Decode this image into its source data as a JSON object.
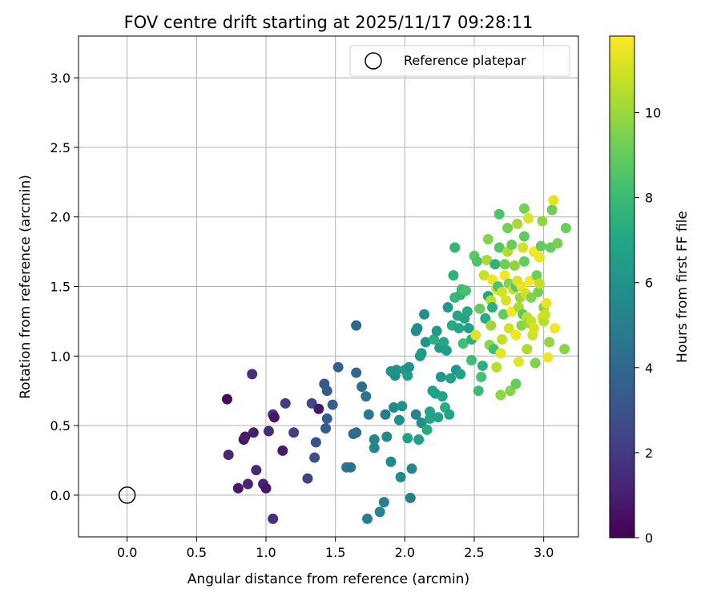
{
  "chart_data": {
    "type": "scatter",
    "title": "FOV centre drift starting at 2025/11/17 09:28:11",
    "xlabel": "Angular distance from reference (arcmin)",
    "ylabel": "Rotation from reference (arcmin)",
    "xlim": [
      -0.35,
      3.25
    ],
    "ylim": [
      -0.3,
      3.3
    ],
    "xticks": [
      "0.0",
      "0.5",
      "1.0",
      "1.5",
      "2.0",
      "2.5",
      "3.0"
    ],
    "yticks": [
      "0.0",
      "0.5",
      "1.0",
      "1.5",
      "2.0",
      "2.5",
      "3.0"
    ],
    "grid": true,
    "legend": {
      "location": "upper right",
      "entries": [
        "Reference platepar"
      ]
    },
    "reference_point": {
      "x": 0.0,
      "y": 0.0,
      "marker": "open-circle"
    },
    "colorbar": {
      "label": "Hours from first FF file",
      "range": [
        0,
        11.8
      ],
      "ticks": [
        "0",
        "2",
        "4",
        "6",
        "8",
        "10"
      ],
      "colormap": "viridis"
    },
    "series": [
      {
        "values": [
          [
            0.72,
            0.69,
            0.3
          ],
          [
            0.73,
            0.29,
            1.2
          ],
          [
            0.8,
            0.05,
            0.8
          ],
          [
            0.84,
            0.4,
            0.5
          ],
          [
            0.85,
            0.42,
            0.9
          ],
          [
            0.87,
            0.08,
            1.3
          ],
          [
            0.9,
            0.87,
            1.6
          ],
          [
            0.91,
            0.45,
            1.0
          ],
          [
            0.93,
            0.18,
            1.4
          ],
          [
            0.98,
            0.08,
            1.1
          ],
          [
            1.0,
            0.05,
            0.7
          ],
          [
            1.02,
            0.46,
            1.5
          ],
          [
            1.05,
            0.58,
            1.8
          ],
          [
            1.06,
            0.56,
            0.6
          ],
          [
            1.05,
            -0.17,
            1.7
          ],
          [
            1.12,
            0.32,
            0.9
          ],
          [
            1.14,
            0.66,
            2.1
          ],
          [
            1.2,
            0.45,
            2.2
          ],
          [
            1.3,
            0.12,
            2.3
          ],
          [
            1.33,
            0.66,
            2.5
          ],
          [
            1.35,
            0.27,
            2.8
          ],
          [
            1.36,
            0.38,
            3.0
          ],
          [
            1.38,
            0.62,
            0.8
          ],
          [
            1.42,
            0.8,
            3.2
          ],
          [
            1.44,
            0.75,
            3.4
          ],
          [
            1.43,
            0.48,
            3.3
          ],
          [
            1.44,
            0.55,
            3.5
          ],
          [
            1.48,
            0.65,
            3.6
          ],
          [
            1.52,
            0.92,
            3.7
          ],
          [
            1.58,
            0.2,
            4.6
          ],
          [
            1.61,
            0.2,
            4.4
          ],
          [
            1.63,
            0.44,
            4.0
          ],
          [
            1.65,
            1.22,
            3.9
          ],
          [
            1.65,
            0.88,
            3.8
          ],
          [
            1.65,
            0.45,
            4.1
          ],
          [
            1.69,
            0.78,
            4.2
          ],
          [
            1.72,
            0.71,
            4.5
          ],
          [
            1.74,
            0.58,
            4.7
          ],
          [
            1.73,
            -0.17,
            5.0
          ],
          [
            1.78,
            0.4,
            5.3
          ],
          [
            1.78,
            0.34,
            5.2
          ],
          [
            1.82,
            -0.12,
            5.4
          ],
          [
            1.85,
            -0.05,
            5.1
          ],
          [
            1.86,
            0.58,
            4.8
          ],
          [
            1.87,
            0.42,
            5.4
          ],
          [
            1.9,
            0.24,
            5.5
          ],
          [
            1.9,
            0.89,
            6.2
          ],
          [
            1.92,
            0.63,
            5.6
          ],
          [
            1.93,
            0.86,
            5.7
          ],
          [
            1.94,
            0.9,
            6.0
          ],
          [
            1.96,
            0.54,
            5.8
          ],
          [
            1.97,
            0.13,
            5.6
          ],
          [
            1.98,
            0.64,
            5.9
          ],
          [
            2.0,
            0.9,
            6.4
          ],
          [
            2.02,
            0.86,
            6.5
          ],
          [
            2.02,
            0.41,
            6.7
          ],
          [
            2.03,
            0.92,
            5.9
          ],
          [
            2.04,
            -0.02,
            5.0
          ],
          [
            2.05,
            0.19,
            5.5
          ],
          [
            2.08,
            0.58,
            5.3
          ],
          [
            2.08,
            1.18,
            5.8
          ],
          [
            2.09,
            1.2,
            5.6
          ],
          [
            2.1,
            0.4,
            6.6
          ],
          [
            2.11,
            1.0,
            6.2
          ],
          [
            2.12,
            1.02,
            6.3
          ],
          [
            2.12,
            0.52,
            5.7
          ],
          [
            2.14,
            1.3,
            5.8
          ],
          [
            2.15,
            1.1,
            6.1
          ],
          [
            2.16,
            0.47,
            7.2
          ],
          [
            2.18,
            0.6,
            7.0
          ],
          [
            2.18,
            0.55,
            6.9
          ],
          [
            2.2,
            0.75,
            6.6
          ],
          [
            2.21,
            1.12,
            7.4
          ],
          [
            2.22,
            0.73,
            6.7
          ],
          [
            2.23,
            1.18,
            6.4
          ],
          [
            2.24,
            0.56,
            6.8
          ],
          [
            2.25,
            1.06,
            6.3
          ],
          [
            2.26,
            0.85,
            6.2
          ],
          [
            2.27,
            0.71,
            6.9
          ],
          [
            2.28,
            1.1,
            7.1
          ],
          [
            2.29,
            0.63,
            7.3
          ],
          [
            2.3,
            1.04,
            6.5
          ],
          [
            2.31,
            1.35,
            6.4
          ],
          [
            2.32,
            0.58,
            6.8
          ],
          [
            2.33,
            0.84,
            6.6
          ],
          [
            2.34,
            1.22,
            7.3
          ],
          [
            2.35,
            1.58,
            7.5
          ],
          [
            2.36,
            1.42,
            7.8
          ],
          [
            2.36,
            1.78,
            7.7
          ],
          [
            2.37,
            0.9,
            6.1
          ],
          [
            2.38,
            1.29,
            7.0
          ],
          [
            2.39,
            1.2,
            6.9
          ],
          [
            2.4,
            1.44,
            7.6
          ],
          [
            2.4,
            0.87,
            6.7
          ],
          [
            2.41,
            1.48,
            8.0
          ],
          [
            2.42,
            1.09,
            8.2
          ],
          [
            2.43,
            1.27,
            6.8
          ],
          [
            2.44,
            1.47,
            8.3
          ],
          [
            2.45,
            1.32,
            7.2
          ],
          [
            2.46,
            1.2,
            6.6
          ],
          [
            2.48,
            1.12,
            7.4
          ],
          [
            2.48,
            0.97,
            8.1
          ],
          [
            2.5,
            1.72,
            8.8
          ],
          [
            2.51,
            1.15,
            11.2
          ],
          [
            2.52,
            1.68,
            8.5
          ],
          [
            2.53,
            0.75,
            8.0
          ],
          [
            2.54,
            1.34,
            9.0
          ],
          [
            2.55,
            0.85,
            8.3
          ],
          [
            2.56,
            0.93,
            7.5
          ],
          [
            2.57,
            1.58,
            10.8
          ],
          [
            2.58,
            1.27,
            7.2
          ],
          [
            2.59,
            1.69,
            10.2
          ],
          [
            2.6,
            1.43,
            6.8
          ],
          [
            2.6,
            1.84,
            9.6
          ],
          [
            2.61,
            1.08,
            9.8
          ],
          [
            2.62,
            1.22,
            10.1
          ],
          [
            2.62,
            1.4,
            10.6
          ],
          [
            2.63,
            1.35,
            7.4
          ],
          [
            2.63,
            1.55,
            11.5
          ],
          [
            2.64,
            1.05,
            8.2
          ],
          [
            2.65,
            1.66,
            7.6
          ],
          [
            2.66,
            1.48,
            11.3
          ],
          [
            2.66,
            0.92,
            10.5
          ],
          [
            2.67,
            1.5,
            8.4
          ],
          [
            2.68,
            1.78,
            8.6
          ],
          [
            2.68,
            2.02,
            8.5
          ],
          [
            2.69,
            1.02,
            11.4
          ],
          [
            2.69,
            0.72,
            9.8
          ],
          [
            2.7,
            1.46,
            11.0
          ],
          [
            2.7,
            1.12,
            10.7
          ],
          [
            2.71,
            1.3,
            8.9
          ],
          [
            2.72,
            1.66,
            9.2
          ],
          [
            2.72,
            1.58,
            11.7
          ],
          [
            2.73,
            1.4,
            11.1
          ],
          [
            2.74,
            1.75,
            10.4
          ],
          [
            2.74,
            1.92,
            9.3
          ],
          [
            2.75,
            1.2,
            11.0
          ],
          [
            2.75,
            1.52,
            9.5
          ],
          [
            2.76,
            0.75,
            9.6
          ],
          [
            2.77,
            1.32,
            11.6
          ],
          [
            2.77,
            1.8,
            9.1
          ],
          [
            2.78,
            1.48,
            10.8
          ],
          [
            2.79,
            1.65,
            9.8
          ],
          [
            2.8,
            1.15,
            11.5
          ],
          [
            2.8,
            1.5,
            8.7
          ],
          [
            2.8,
            0.8,
            9.0
          ],
          [
            2.81,
            1.95,
            10.2
          ],
          [
            2.81,
            1.54,
            11.2
          ],
          [
            2.82,
            1.35,
            10.3
          ],
          [
            2.82,
            0.96,
            11.3
          ],
          [
            2.83,
            1.42,
            10.0
          ],
          [
            2.84,
            1.5,
            11.4
          ],
          [
            2.84,
            1.22,
            9.7
          ],
          [
            2.85,
            1.78,
            11.0
          ],
          [
            2.85,
            1.3,
            8.8
          ],
          [
            2.86,
            2.06,
            9.4
          ],
          [
            2.86,
            1.68,
            9.0
          ],
          [
            2.86,
            1.86,
            8.9
          ],
          [
            2.87,
            1.45,
            11.0
          ],
          [
            2.88,
            1.28,
            10.6
          ],
          [
            2.88,
            1.05,
            10.4
          ],
          [
            2.89,
            1.99,
            11.2
          ],
          [
            2.89,
            1.24,
            9.9
          ],
          [
            2.9,
            1.54,
            11.7
          ],
          [
            2.91,
            1.25,
            10.8
          ],
          [
            2.91,
            1.42,
            9.5
          ],
          [
            2.92,
            1.15,
            10.9
          ],
          [
            2.93,
            1.2,
            11.1
          ],
          [
            2.93,
            1.75,
            11.6
          ],
          [
            2.94,
            0.95,
            9.5
          ],
          [
            2.95,
            1.58,
            9.2
          ],
          [
            2.96,
            1.46,
            9.3
          ],
          [
            2.97,
            1.52,
            10.7
          ],
          [
            2.97,
            1.71,
            11.5
          ],
          [
            2.98,
            1.79,
            9.0
          ],
          [
            2.99,
            1.97,
            9.8
          ],
          [
            2.99,
            1.28,
            11.2
          ],
          [
            3.0,
            1.35,
            9.6
          ],
          [
            3.0,
            1.25,
            10.5
          ],
          [
            3.01,
            1.3,
            10.9
          ],
          [
            3.02,
            1.38,
            11.4
          ],
          [
            3.03,
            0.99,
            11.5
          ],
          [
            3.04,
            1.1,
            9.9
          ],
          [
            3.05,
            1.78,
            9.0
          ],
          [
            3.06,
            2.05,
            9.2
          ],
          [
            3.07,
            2.12,
            11.3
          ],
          [
            3.08,
            1.2,
            11.6
          ],
          [
            3.1,
            1.81,
            9.4
          ],
          [
            3.15,
            1.05,
            9.7
          ],
          [
            3.16,
            1.92,
            9.1
          ]
        ]
      }
    ]
  }
}
